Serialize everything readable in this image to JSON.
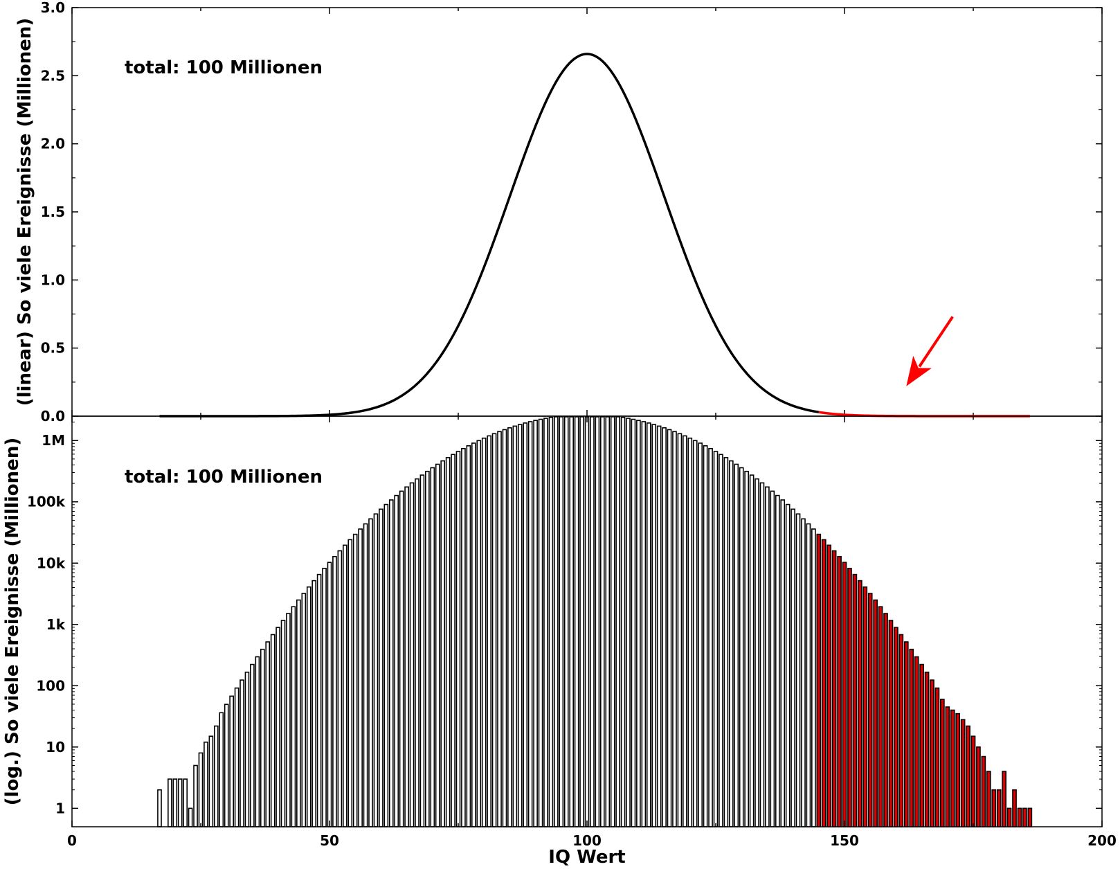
{
  "chart_data": [
    {
      "type": "line",
      "id": "top",
      "ylabel": "(linear) So viele Ereignisse (Millionen)",
      "xlabel": "",
      "annotation": "total: 100 Millionen",
      "xlim": [
        0,
        200
      ],
      "ylim": [
        0,
        3.0
      ],
      "y_ticks": [
        0.0,
        0.5,
        1.0,
        1.5,
        2.0,
        2.5,
        3.0
      ],
      "y_tick_labels": [
        "0.0",
        "0.5",
        "1.0",
        "1.5",
        "2.0",
        "2.5",
        "3.0"
      ],
      "grid": false,
      "distribution": {
        "mean": 100,
        "sd": 15,
        "total": 100000000
      },
      "series": [
        {
          "color": "#000000",
          "x_range": [
            17,
            145
          ]
        },
        {
          "color": "#ff0000",
          "x_range": [
            145,
            186
          ]
        }
      ],
      "arrow": {
        "from": [
          171,
          0.73
        ],
        "to": [
          162,
          0.22
        ],
        "color": "#ff0000"
      }
    },
    {
      "type": "bar",
      "id": "bottom",
      "ylabel": "(log.) So viele Ereignisse (Millionen)",
      "xlabel": "IQ Wert",
      "annotation": "total: 100 Millionen",
      "xlim": [
        0,
        200
      ],
      "ylim": [
        0.5,
        2500000
      ],
      "yscale": "log",
      "y_ticks": [
        1,
        10,
        100,
        1000,
        10000,
        100000,
        1000000
      ],
      "y_tick_labels": [
        "1",
        "10",
        "100",
        "1k",
        "10k",
        "100k",
        "1M"
      ],
      "x_ticks": [
        0,
        50,
        100,
        150,
        200
      ],
      "x_tick_labels": [
        "0",
        "50",
        "100",
        "150",
        "200"
      ],
      "grid": false,
      "highlight_from": 145,
      "colors": {
        "normal": "#ffffff",
        "highlight": "#dd0000",
        "edge": "#000000"
      },
      "distribution": {
        "mean": 100,
        "sd": 15,
        "total": 100000000
      },
      "low_tail": [
        [
          17,
          2
        ],
        [
          19,
          3
        ],
        [
          20,
          3
        ],
        [
          21,
          3
        ],
        [
          22,
          3
        ],
        [
          23,
          1
        ],
        [
          24,
          5
        ],
        [
          25,
          8
        ],
        [
          26,
          12
        ],
        [
          27,
          15
        ],
        [
          28,
          22
        ]
      ],
      "high_tail": [
        [
          169,
          60
        ],
        [
          170,
          45
        ],
        [
          171,
          40
        ],
        [
          172,
          35
        ],
        [
          173,
          28
        ],
        [
          174,
          22
        ],
        [
          175,
          15
        ],
        [
          176,
          10
        ],
        [
          177,
          7
        ],
        [
          178,
          4
        ],
        [
          179,
          2
        ],
        [
          180,
          2
        ],
        [
          181,
          4
        ],
        [
          182,
          1
        ],
        [
          183,
          2
        ],
        [
          184,
          1
        ],
        [
          185,
          1
        ],
        [
          186,
          1
        ]
      ]
    }
  ]
}
